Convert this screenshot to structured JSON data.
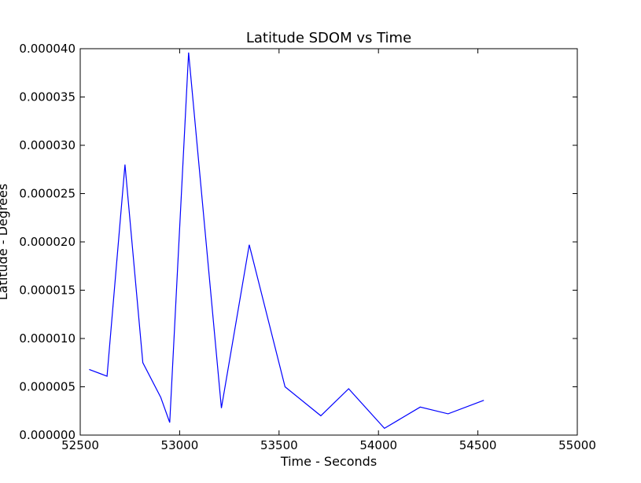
{
  "chart_data": {
    "type": "line",
    "title": "Latitude SDOM vs Time",
    "xlabel": "Time - Seconds",
    "ylabel": "Latitude - Degrees",
    "xlim": [
      52500,
      55000
    ],
    "ylim": [
      0.0,
      4e-05
    ],
    "xticks": [
      "52500",
      "53000",
      "53500",
      "54000",
      "54500",
      "55000"
    ],
    "yticks": [
      "0.000000",
      "0.000005",
      "0.000010",
      "0.000015",
      "0.000020",
      "0.000025",
      "0.000030",
      "0.000035",
      "0.000040"
    ],
    "grid": false,
    "series": [
      {
        "color": "#0000ff",
        "x": [
          52545,
          52635,
          52725,
          52815,
          52905,
          52950,
          53045,
          53210,
          53350,
          53530,
          53710,
          53850,
          54030,
          54210,
          54350,
          54530
        ],
        "y": [
          6.8e-06,
          6.1e-06,
          2.8e-05,
          7.5e-06,
          3.9e-06,
          1.3e-06,
          3.96e-05,
          2.8e-06,
          1.97e-05,
          5e-06,
          2e-06,
          4.8e-06,
          7e-07,
          2.9e-06,
          2.2e-06,
          3.6e-06
        ]
      }
    ]
  }
}
